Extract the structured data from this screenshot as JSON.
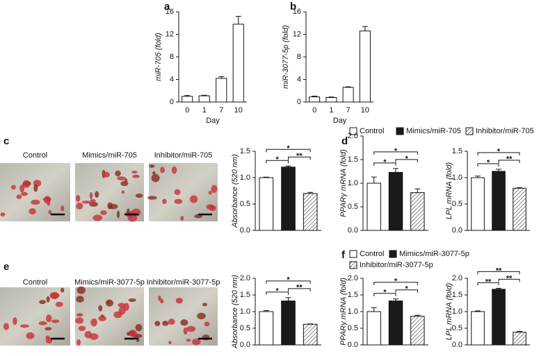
{
  "chart_data": [
    {
      "type": "bar",
      "panel": "a",
      "y_label": "miR-705 (fold)",
      "x_label": "Day",
      "categories": [
        "0",
        "1",
        "7",
        "10"
      ],
      "values": [
        1.0,
        1.1,
        4.2,
        13.8
      ],
      "errors": [
        0.15,
        0.1,
        0.3,
        1.4
      ],
      "color": "#ffffff",
      "ylim": [
        0,
        16
      ],
      "yticks": [
        0,
        4,
        8,
        12,
        16
      ]
    },
    {
      "type": "bar",
      "panel": "b",
      "y_label": "miR-3077-5p (fold)",
      "x_label": "Day",
      "categories": [
        "0",
        "1",
        "7",
        "10"
      ],
      "values": [
        0.9,
        0.8,
        2.6,
        12.6
      ],
      "errors": [
        0.15,
        0.1,
        0.1,
        0.8
      ],
      "color": "#ffffff",
      "ylim": [
        0,
        16
      ],
      "yticks": [
        0,
        4,
        8,
        12,
        16
      ]
    },
    {
      "type": "images",
      "panel": "c",
      "captions": [
        "Control",
        "Mimics/miR-705",
        "Inhibitor/miR-705"
      ]
    },
    {
      "type": "bar",
      "y_label": "Absorbance (520 nm)",
      "values": [
        1.0,
        1.2,
        0.7
      ],
      "errors": [
        0.01,
        0.02,
        0.02
      ],
      "colors": [
        "#ffffff",
        "#1a1a1a",
        "hatch"
      ],
      "ylim": [
        0,
        1.5
      ],
      "yticks": [
        {
          "value": 0,
          "label": "0.0"
        },
        0.5,
        {
          "value": 1,
          "label": "1.0"
        },
        1.5
      ],
      "annotations": [
        {
          "text": "*",
          "from": 0,
          "to": 1
        },
        {
          "text": "**",
          "from": 1,
          "to": 2
        },
        {
          "text": "*",
          "from": 0,
          "to": 2
        }
      ]
    },
    {
      "type": "legend",
      "panel": "d",
      "series": [
        {
          "name": "Control",
          "color": "#ffffff"
        },
        {
          "name": "Mimics/miR-705",
          "color": "#1a1a1a"
        },
        {
          "name": "Inhibitor/miR-705",
          "color": "hatch"
        }
      ]
    },
    {
      "type": "bar",
      "y_label": "PPARγ mRNA (fold)",
      "values": [
        1.0,
        1.23,
        0.8
      ],
      "errors": [
        0.13,
        0.08,
        0.08
      ],
      "colors": [
        "#ffffff",
        "#1a1a1a",
        "hatch"
      ],
      "ylim": [
        0,
        2
      ],
      "yticks": [
        {
          "value": 0,
          "label": "0.0"
        },
        0.5,
        {
          "value": 1,
          "label": "1.0"
        },
        1.5,
        {
          "value": 2,
          "label": "2.0"
        }
      ],
      "annotations": [
        {
          "text": "*",
          "from": 0,
          "to": 1
        },
        {
          "text": "*",
          "from": 1,
          "to": 2
        },
        {
          "text": "*",
          "from": 0,
          "to": 2
        }
      ]
    },
    {
      "type": "bar",
      "y_label": "LPL mRNA (fold)",
      "values": [
        1.0,
        1.12,
        0.8
      ],
      "errors": [
        0.03,
        0.04,
        0.01
      ],
      "colors": [
        "#ffffff",
        "#1a1a1a",
        "hatch"
      ],
      "ylim": [
        0,
        1.5
      ],
      "yticks": [
        {
          "value": 0,
          "label": "0.0"
        },
        0.5,
        {
          "value": 1,
          "label": "1.0"
        },
        1.5
      ],
      "annotations": [
        {
          "text": "*",
          "from": 0,
          "to": 1
        },
        {
          "text": "**",
          "from": 1,
          "to": 2
        },
        {
          "text": "*",
          "from": 0,
          "to": 2
        }
      ]
    },
    {
      "type": "images",
      "panel": "e",
      "captions": [
        "Control",
        "Mimics/miR-3077-5p",
        "Inhibitor/miR-3077-5p"
      ]
    },
    {
      "type": "bar",
      "y_label": "Absorbance (520 nm)",
      "values": [
        1.0,
        1.32,
        0.62
      ],
      "errors": [
        0.03,
        0.1,
        0.01
      ],
      "colors": [
        "#ffffff",
        "#1a1a1a",
        "hatch"
      ],
      "ylim": [
        0,
        2
      ],
      "yticks": [
        {
          "value": 0,
          "label": "0.0"
        },
        0.5,
        {
          "value": 1,
          "label": "1.0"
        },
        1.5,
        {
          "value": 2,
          "label": "2.0"
        }
      ],
      "annotations": [
        {
          "text": "*",
          "from": 0,
          "to": 1
        },
        {
          "text": "**",
          "from": 1,
          "to": 2
        },
        {
          "text": "*",
          "from": 0,
          "to": 2
        }
      ]
    },
    {
      "type": "legend",
      "panel": "f",
      "series": [
        {
          "name": "Control",
          "color": "#ffffff"
        },
        {
          "name": "Mimics/miR-3077-5p",
          "color": "#1a1a1a"
        },
        {
          "name": "Inhibitor/miR-3077-5p",
          "color": "hatch"
        }
      ]
    },
    {
      "type": "bar",
      "y_label": "PPARγ mRNA (fold)",
      "values": [
        1.0,
        1.32,
        0.86
      ],
      "errors": [
        0.12,
        0.06,
        0.03
      ],
      "colors": [
        "#ffffff",
        "#1a1a1a",
        "hatch"
      ],
      "ylim": [
        0,
        2
      ],
      "yticks": [
        {
          "value": 0,
          "label": "0.0"
        },
        0.5,
        {
          "value": 1,
          "label": "1.0"
        },
        1.5,
        {
          "value": 2,
          "label": "2.0"
        }
      ],
      "annotations": [
        {
          "text": "*",
          "from": 0,
          "to": 1
        },
        {
          "text": "*",
          "from": 1,
          "to": 2
        },
        {
          "text": "*",
          "from": 0,
          "to": 2
        }
      ]
    },
    {
      "type": "bar",
      "y_label": "LPL mRNA (fold)",
      "values": [
        1.0,
        1.67,
        0.38
      ],
      "errors": [
        0.02,
        0.03,
        0.03
      ],
      "colors": [
        "#ffffff",
        "#1a1a1a",
        "hatch"
      ],
      "ylim": [
        0,
        2
      ],
      "yticks": [
        {
          "value": 0,
          "label": "0.0"
        },
        0.5,
        {
          "value": 1,
          "label": "1.0"
        },
        1.5,
        {
          "value": 2,
          "label": "2.0"
        }
      ],
      "annotations": [
        {
          "text": "**",
          "from": 0,
          "to": 1
        },
        {
          "text": "**",
          "from": 1,
          "to": 2
        },
        {
          "text": "**",
          "from": 0,
          "to": 2
        }
      ]
    }
  ]
}
